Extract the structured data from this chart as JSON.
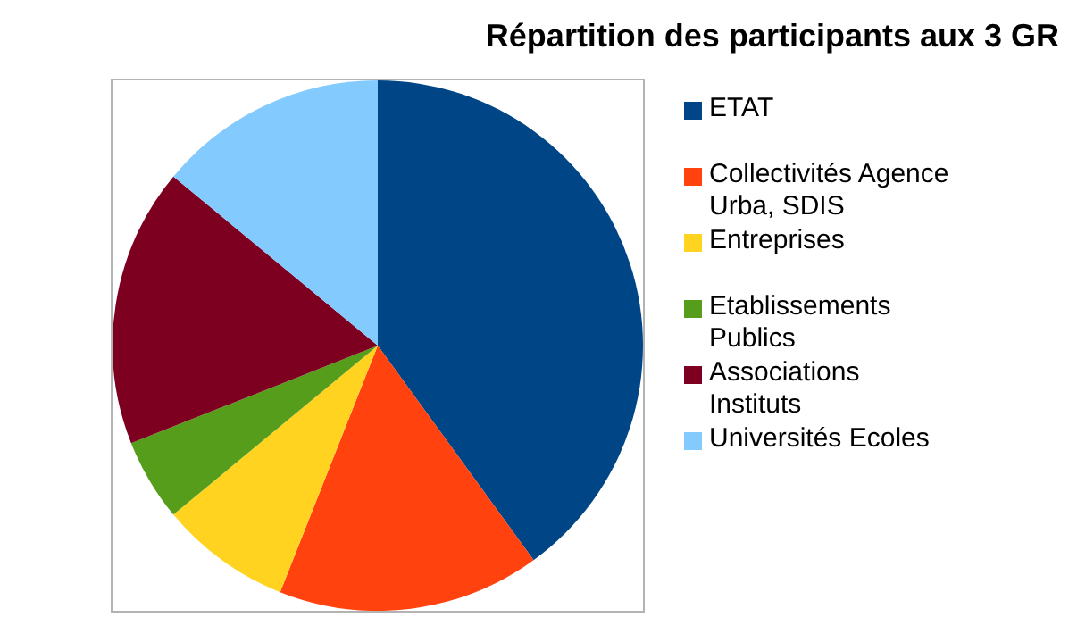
{
  "chart_data": {
    "type": "pie",
    "title": "Répartition des participants aux 3 GR",
    "categories": [
      "ETAT",
      "Collectivités Agence Urba, SDIS",
      "Entreprises",
      "Etablissements Publics",
      "Associations Instituts",
      "Universités Ecoles"
    ],
    "values": [
      40,
      16,
      8,
      5,
      17,
      14
    ],
    "colors": [
      "#004586",
      "#ff420e",
      "#ffd320",
      "#579d1c",
      "#7e0021",
      "#83caff"
    ],
    "legend": "right"
  }
}
